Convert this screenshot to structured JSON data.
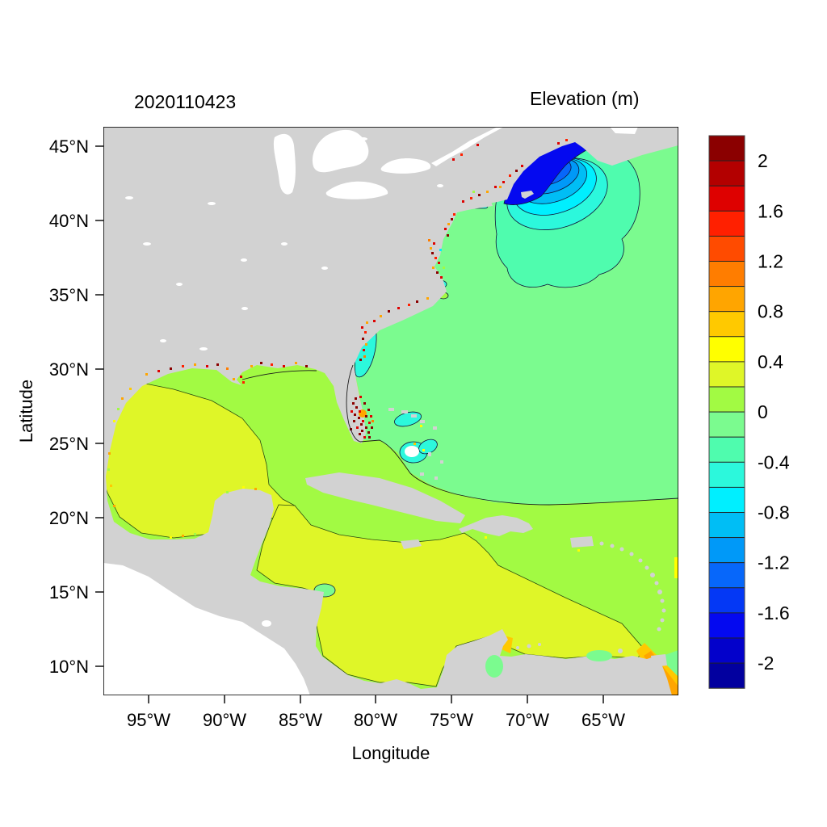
{
  "page": {
    "run_title": "2020110423",
    "colorbar_title": "Elevation (m)"
  },
  "chart_data": {
    "type": "heatmap",
    "subtype": "filled-contour-geographic-map",
    "title": "2020110423",
    "legend_title": "Elevation (m)",
    "xlabel": "Longitude",
    "ylabel": "Latitude",
    "x_ticks": [
      "95°W",
      "90°W",
      "85°W",
      "80°W",
      "75°W",
      "70°W",
      "65°W"
    ],
    "y_ticks": [
      "45°N",
      "40°N",
      "35°N",
      "30°N",
      "25°N",
      "20°N",
      "15°N",
      "10°N"
    ],
    "xlim": [
      "98°W",
      "60°W"
    ],
    "ylim": [
      "8°N",
      "46.3°N"
    ],
    "grid": false,
    "colorbar": {
      "position": "right",
      "tick_labels": [
        "2",
        "1.6",
        "1.2",
        "0.8",
        "0.4",
        "0",
        "-0.4",
        "-0.8",
        "-1.2",
        "-1.6",
        "-2"
      ],
      "value_range": [
        -2.2,
        2.2
      ],
      "band_step": 0.2,
      "band_count": 22,
      "band_colors_top_to_bottom": [
        "#8B0000",
        "#B30000",
        "#DE0100",
        "#FF2000",
        "#FF4B00",
        "#FF7D00",
        "#FFA500",
        "#FFC900",
        "#FFFF00",
        "#DFF628",
        "#A2FA43",
        "#7BFB8F",
        "#4FFCAE",
        "#2CF8DC",
        "#00EFFF",
        "#00BEF5",
        "#0099F8",
        "#0767FA",
        "#0438F5",
        "#0409F0",
        "#0301CB",
        "#02009F"
      ],
      "band_ranges_top_to_bottom": [
        "2.0–2.2",
        "1.8–2.0",
        "1.6–1.8",
        "1.4–1.6",
        "1.2–1.4",
        "1.0–1.2",
        "0.8–1.0",
        "0.6–0.8",
        "0.4–0.6",
        "0.2–0.4",
        "0.0–0.2",
        "-0.2–0.0",
        "-0.4–-0.2",
        "-0.6–-0.4",
        "-0.8–-0.6",
        "-1.0–-0.8",
        "-1.2–-1.0",
        "-1.4–-1.2",
        "-1.6–-1.4",
        "-1.8–-1.6",
        "-2.0–-1.8",
        "-2.2–-2.0"
      ]
    },
    "colors": {
      "land": "#D2D2D2",
      "outside_domain": "#FFFFFF",
      "lakes": "#FFFFFF",
      "contour_line": "#1B1B1B",
      "plot_border": "#000000"
    },
    "map_regions": [
      {
        "name": "atlantic-open-ocean",
        "elevation_band": "-0.2 to 0 m",
        "color": "#7BFB8F"
      },
      {
        "name": "gulf-of-mexico-central-east",
        "elevation_band": "0 to 0.2 m",
        "color": "#A2FA43"
      },
      {
        "name": "gulf-of-mexico-west",
        "elevation_band": "0.2 to 0.4 m",
        "color": "#DFF628"
      },
      {
        "name": "caribbean-southwest",
        "elevation_band": "0.2 to 0.4 m",
        "color": "#DFF628"
      },
      {
        "name": "caribbean-northeast-and-bahamas",
        "elevation_band": "0 to 0.2 m",
        "color": "#A2FA43"
      },
      {
        "name": "gulf-of-maine-negative-anomaly",
        "elevation_band": "rings from -0.2 down to -1.8 m",
        "color": "#0409F0"
      },
      {
        "name": "bay-of-fundy-head",
        "elevation_band": "positive spike ~1.4-1.6 m",
        "color": "#FF2000"
      },
      {
        "name": "florida-east-coast-strip",
        "elevation_band": "-0.6 to -0.4 m",
        "color": "#2CF8DC"
      },
      {
        "name": "bahama-banks-patches",
        "elevation_band": "-0.8 to -0.4 m",
        "color": "#2CF8DC"
      },
      {
        "name": "lake-okeechobee",
        "elevation_band": "0.8 to 1.0 m",
        "color": "#FFA500"
      },
      {
        "name": "trinidad-orinoco-corner",
        "elevation_band": "0.6 to 1.0 m",
        "color": "#FFC900"
      },
      {
        "name": "coastal-estuary-specks",
        "elevation_band": "scattered high/low points along coasts",
        "color": "#8B0000"
      }
    ]
  }
}
